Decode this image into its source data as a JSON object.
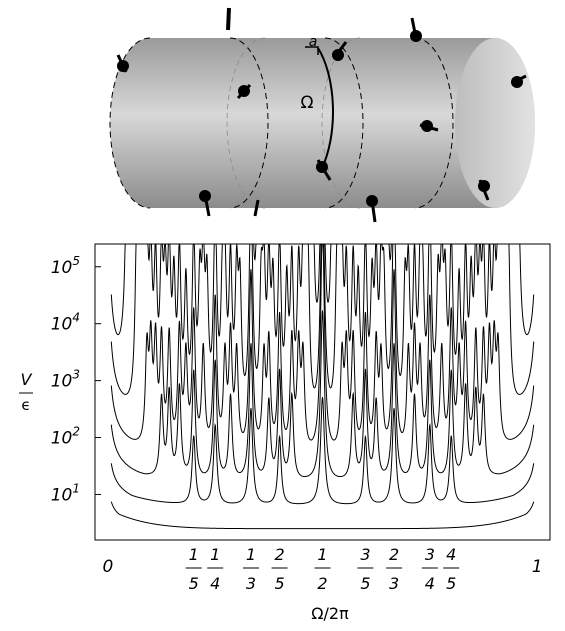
{
  "illustration": {
    "label_a": "a",
    "label_omega": "Ω"
  },
  "chart_data": {
    "type": "line",
    "xlabel": "Ω/2π",
    "ylabel_top": "V",
    "ylabel_bottom": "ϵ",
    "ylim_log10": [
      0.2,
      5.4
    ],
    "xlim": [
      -0.03,
      1.03
    ],
    "y_scale": "log",
    "grid": false,
    "legend": "none",
    "y_ticks": [
      {
        "mantissa": "10",
        "exp": "5",
        "value": 100000
      },
      {
        "mantissa": "10",
        "exp": "4",
        "value": 10000
      },
      {
        "mantissa": "10",
        "exp": "3",
        "value": 1000
      },
      {
        "mantissa": "10",
        "exp": "2",
        "value": 100
      },
      {
        "mantissa": "10",
        "exp": "1",
        "value": 10
      }
    ],
    "x_ticks": [
      {
        "type": "int",
        "label": "0",
        "value": 0
      },
      {
        "type": "frac",
        "num": "1",
        "den": "5",
        "value": 0.2
      },
      {
        "type": "frac",
        "num": "1",
        "den": "4",
        "value": 0.25
      },
      {
        "type": "frac",
        "num": "1",
        "den": "3",
        "value": 0.3333
      },
      {
        "type": "frac",
        "num": "2",
        "den": "5",
        "value": 0.4
      },
      {
        "type": "frac",
        "num": "1",
        "den": "2",
        "value": 0.5
      },
      {
        "type": "frac",
        "num": "3",
        "den": "5",
        "value": 0.6
      },
      {
        "type": "frac",
        "num": "2",
        "den": "3",
        "value": 0.6667
      },
      {
        "type": "frac",
        "num": "3",
        "den": "4",
        "value": 0.75
      },
      {
        "type": "frac",
        "num": "4",
        "den": "5",
        "value": 0.8
      },
      {
        "type": "int",
        "label": "1",
        "value": 1
      }
    ],
    "series": [
      {
        "base_log10": 0.4,
        "peak_denominator_max": 1
      },
      {
        "base_log10": 0.8,
        "peak_denominator_max": 5
      },
      {
        "base_log10": 1.2,
        "peak_denominator_max": 8
      },
      {
        "base_log10": 1.6,
        "peak_denominator_max": 11
      },
      {
        "base_log10": 2.05,
        "peak_denominator_max": 15
      },
      {
        "base_log10": 2.43,
        "peak_denominator_max": 22
      }
    ],
    "peak_heights_log10": {
      "1/2": [
        0.5,
        1.9,
        3.0,
        4.0,
        4.35,
        4.9
      ],
      "1/3": [
        0.0,
        1.7,
        2.4,
        3.2,
        4.0,
        4.27
      ],
      "1/4": [
        0.0,
        1.4,
        2.1,
        2.7,
        3.5,
        3.8
      ],
      "1/5": [
        0.0,
        1.2,
        1.9,
        2.4,
        3.0,
        3.35
      ]
    }
  }
}
